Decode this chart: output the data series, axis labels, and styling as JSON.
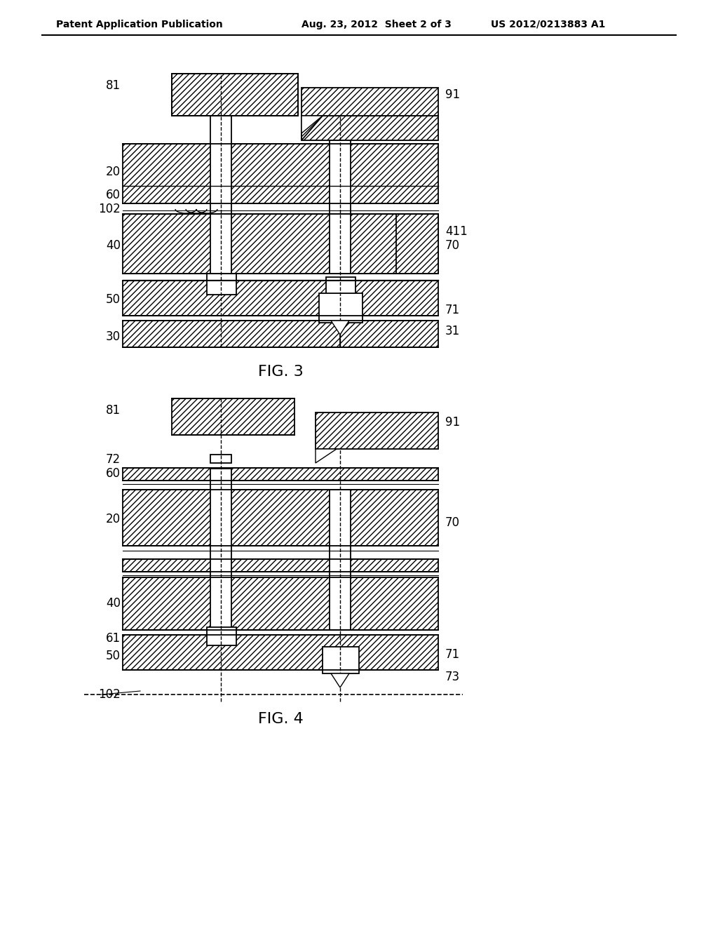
{
  "bg_color": "#ffffff",
  "line_color": "#000000",
  "hatch_color": "#000000",
  "header_left": "Patent Application Publication",
  "header_mid": "Aug. 23, 2012  Sheet 2 of 3",
  "header_right": "US 2012/0213883 A1",
  "fig3_caption": "FIG. 3",
  "fig4_caption": "FIG. 4"
}
